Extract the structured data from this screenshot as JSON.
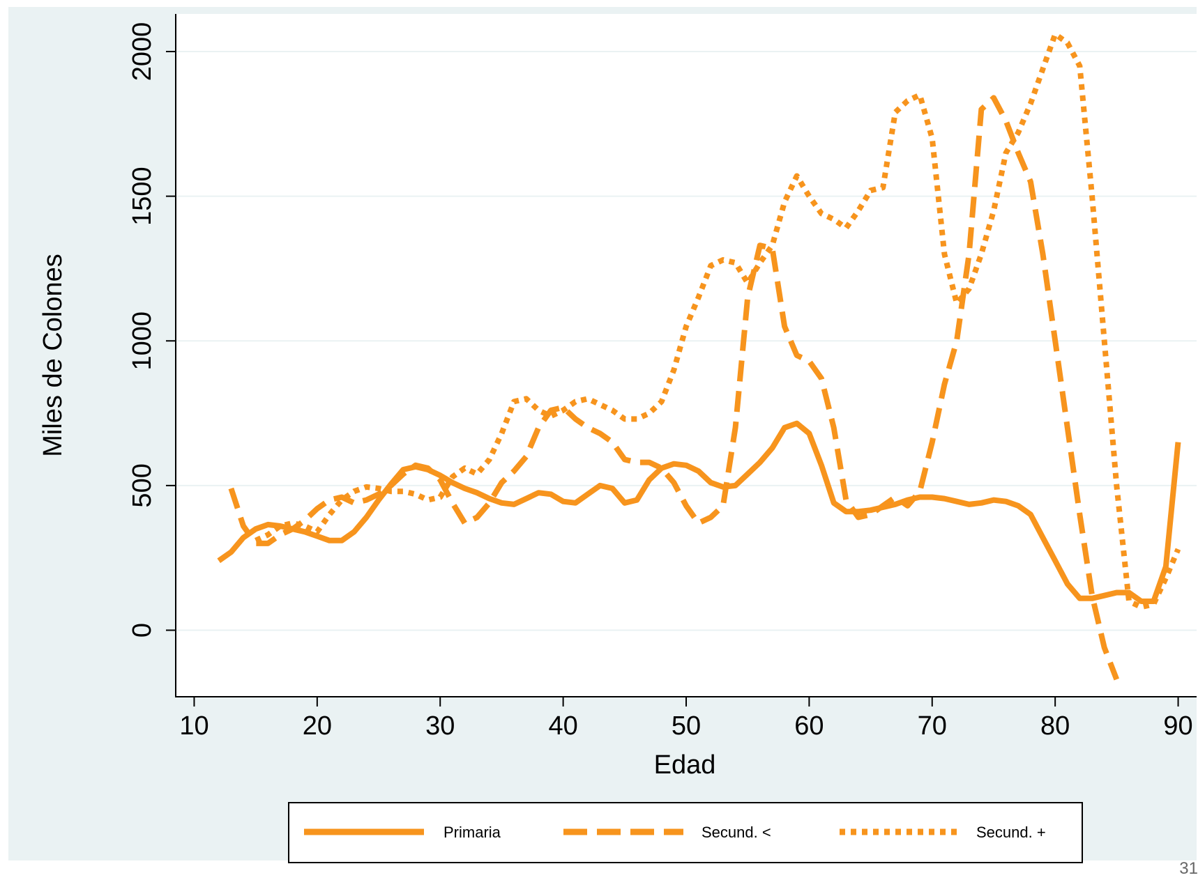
{
  "page": {
    "number": "31"
  },
  "colors": {
    "background": "#eaf2f3",
    "plot_background": "#ffffff",
    "grid": "#eaf2f3",
    "series": "#f7941d",
    "axis": "#000000"
  },
  "chart_data": {
    "type": "line",
    "title": "",
    "xlabel": "Edad",
    "ylabel": "Miles de Colones",
    "xlim": [
      8.5,
      91.5
    ],
    "ylim": [
      -230,
      2130
    ],
    "xticks": [
      10,
      20,
      30,
      40,
      50,
      60,
      70,
      80,
      90
    ],
    "yticks": [
      0,
      500,
      1000,
      1500,
      2000
    ],
    "grid": true,
    "legend": {
      "placement": "bottom",
      "entries": [
        "Primaria",
        "Secund. <",
        "Secund. +"
      ]
    },
    "series": [
      {
        "name": "Primaria",
        "style": "solid",
        "x": [
          12,
          13,
          14,
          15,
          16,
          17,
          18,
          19,
          20,
          21,
          22,
          23,
          24,
          25,
          26,
          27,
          28,
          29,
          30,
          31,
          32,
          33,
          34,
          35,
          36,
          37,
          38,
          39,
          40,
          41,
          42,
          43,
          44,
          45,
          46,
          47,
          48,
          49,
          50,
          51,
          52,
          53,
          54,
          55,
          56,
          57,
          58,
          59,
          60,
          61,
          62,
          63,
          64,
          65,
          66,
          67,
          68,
          69,
          70,
          71,
          72,
          73,
          74,
          75,
          76,
          77,
          78,
          79,
          80,
          81,
          82,
          83,
          84,
          85,
          86,
          87,
          88,
          89,
          90
        ],
        "y": [
          240,
          270,
          320,
          350,
          365,
          360,
          350,
          340,
          325,
          310,
          310,
          340,
          390,
          450,
          505,
          555,
          565,
          555,
          535,
          510,
          490,
          475,
          455,
          440,
          435,
          455,
          475,
          470,
          445,
          440,
          470,
          500,
          490,
          440,
          450,
          520,
          560,
          575,
          570,
          550,
          510,
          495,
          500,
          540,
          580,
          630,
          700,
          715,
          680,
          570,
          440,
          410,
          410,
          415,
          425,
          435,
          450,
          460,
          460,
          455,
          445,
          435,
          440,
          450,
          445,
          430,
          400,
          320,
          240,
          160,
          110,
          110,
          120,
          130,
          130,
          100,
          100,
          220,
          650
        ]
      },
      {
        "name": "Secund. <",
        "style": "dashed",
        "x": [
          13,
          14,
          15,
          16,
          17,
          18,
          19,
          20,
          21,
          22,
          23,
          24,
          25,
          26,
          27,
          28,
          29,
          30,
          31,
          32,
          33,
          34,
          35,
          36,
          37,
          38,
          39,
          40,
          41,
          42,
          43,
          44,
          45,
          46,
          47,
          48,
          49,
          50,
          51,
          52,
          53,
          54,
          55,
          56,
          57,
          58,
          59,
          60,
          61,
          62,
          63,
          64,
          65,
          66,
          67,
          68,
          69,
          70,
          71,
          72,
          73,
          74,
          75,
          76,
          77,
          78,
          79,
          80,
          81,
          82,
          83,
          84,
          85
        ],
        "y": [
          490,
          360,
          300,
          300,
          330,
          350,
          380,
          420,
          450,
          460,
          440,
          450,
          470,
          500,
          540,
          570,
          560,
          520,
          440,
          370,
          390,
          440,
          510,
          550,
          600,
          700,
          760,
          770,
          730,
          700,
          680,
          650,
          590,
          580,
          580,
          560,
          510,
          430,
          370,
          390,
          430,
          700,
          1150,
          1330,
          1320,
          1050,
          950,
          930,
          870,
          700,
          450,
          390,
          400,
          430,
          460,
          430,
          480,
          650,
          850,
          1000,
          1300,
          1800,
          1840,
          1760,
          1650,
          1550,
          1300,
          1000,
          700,
          400,
          120,
          -60,
          -170
        ]
      },
      {
        "name": "Secund. +",
        "style": "dotted",
        "x": [
          15,
          16,
          17,
          18,
          19,
          20,
          21,
          22,
          23,
          24,
          25,
          26,
          27,
          28,
          29,
          30,
          31,
          32,
          33,
          34,
          35,
          36,
          37,
          38,
          39,
          40,
          41,
          42,
          43,
          44,
          45,
          46,
          47,
          48,
          49,
          50,
          51,
          52,
          53,
          54,
          55,
          56,
          57,
          58,
          59,
          60,
          61,
          62,
          63,
          64,
          65,
          66,
          67,
          68,
          69,
          70,
          71,
          72,
          73,
          74,
          75,
          76,
          77,
          78,
          79,
          80,
          81,
          82,
          83,
          84,
          85,
          86,
          87,
          88,
          89,
          90
        ],
        "y": [
          310,
          330,
          360,
          370,
          360,
          340,
          400,
          450,
          480,
          495,
          490,
          480,
          480,
          470,
          450,
          460,
          530,
          560,
          540,
          590,
          680,
          790,
          800,
          760,
          740,
          760,
          790,
          800,
          780,
          760,
          730,
          730,
          750,
          790,
          900,
          1050,
          1150,
          1260,
          1280,
          1270,
          1200,
          1270,
          1330,
          1480,
          1570,
          1500,
          1440,
          1420,
          1390,
          1450,
          1520,
          1530,
          1790,
          1830,
          1850,
          1700,
          1300,
          1130,
          1180,
          1300,
          1450,
          1650,
          1720,
          1820,
          1940,
          2060,
          2030,
          1950,
          1500,
          1000,
          500,
          100,
          80,
          90,
          180,
          280
        ]
      }
    ]
  }
}
